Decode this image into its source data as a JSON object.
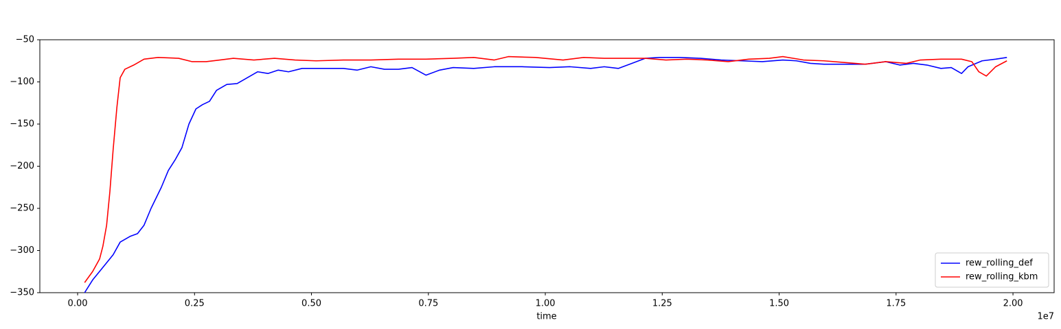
{
  "chart_data": {
    "type": "line",
    "x_label": "time",
    "x_offset_label": "1e7",
    "xlim": [
      -0.0808,
      2.088
    ],
    "ylim": [
      -350,
      -50
    ],
    "xticks": [
      {
        "value": 0,
        "label": "0.00"
      },
      {
        "value": 0.25,
        "label": "0.25"
      },
      {
        "value": 0.5,
        "label": "0.50"
      },
      {
        "value": 0.75,
        "label": "0.75"
      },
      {
        "value": 1,
        "label": "1.00"
      },
      {
        "value": 1.25,
        "label": "1.25"
      },
      {
        "value": 1.5,
        "label": "1.50"
      },
      {
        "value": 1.75,
        "label": "1.75"
      },
      {
        "value": 2,
        "label": "2.00"
      }
    ],
    "yticks": [
      {
        "value": -350,
        "label": "−350"
      },
      {
        "value": -300,
        "label": "−300"
      },
      {
        "value": -250,
        "label": "−250"
      },
      {
        "value": -200,
        "label": "−200"
      },
      {
        "value": -150,
        "label": "−150"
      },
      {
        "value": -100,
        "label": "−100"
      },
      {
        "value": -50,
        "label": "−50"
      }
    ],
    "grid": false,
    "legend_position": "lower right",
    "series": [
      {
        "name": "rew_rolling_def",
        "color": "#0000ff",
        "x": [
          0.015,
          0.032,
          0.054,
          0.076,
          0.091,
          0.113,
          0.128,
          0.142,
          0.157,
          0.179,
          0.194,
          0.209,
          0.223,
          0.238,
          0.253,
          0.267,
          0.282,
          0.297,
          0.319,
          0.341,
          0.363,
          0.385,
          0.407,
          0.429,
          0.451,
          0.48,
          0.524,
          0.568,
          0.598,
          0.627,
          0.656,
          0.686,
          0.715,
          0.745,
          0.774,
          0.803,
          0.847,
          0.891,
          0.95,
          1.009,
          1.053,
          1.097,
          1.126,
          1.156,
          1.185,
          1.214,
          1.244,
          1.288,
          1.332,
          1.376,
          1.42,
          1.464,
          1.508,
          1.537,
          1.567,
          1.596,
          1.64,
          1.684,
          1.728,
          1.758,
          1.787,
          1.816,
          1.846,
          1.868,
          1.89,
          1.904,
          1.934,
          1.963,
          1.987
        ],
        "values": [
          -350,
          -335,
          -320,
          -305,
          -290,
          -283,
          -280,
          -270,
          -250,
          -225,
          -205,
          -192,
          -178,
          -150,
          -132,
          -127,
          -123,
          -110,
          -103,
          -102,
          -95,
          -88,
          -90,
          -86,
          -88,
          -84,
          -84,
          -84,
          -86,
          -82,
          -85,
          -85,
          -83,
          -92,
          -86,
          -83,
          -84,
          -82,
          -82,
          -83,
          -82,
          -84,
          -82,
          -84,
          -78,
          -72,
          -71,
          -71,
          -72,
          -74,
          -75,
          -76,
          -74,
          -75,
          -78,
          -79,
          -79,
          -79,
          -76,
          -80,
          -78,
          -80,
          -84,
          -83,
          -90,
          -82,
          -75,
          -73,
          -71
        ]
      },
      {
        "name": "rew_rolling_kbm",
        "color": "#ff0000",
        "x": [
          0.015,
          0.032,
          0.047,
          0.054,
          0.062,
          0.069,
          0.076,
          0.084,
          0.091,
          0.101,
          0.12,
          0.142,
          0.172,
          0.216,
          0.245,
          0.275,
          0.304,
          0.333,
          0.377,
          0.421,
          0.465,
          0.51,
          0.568,
          0.627,
          0.686,
          0.745,
          0.803,
          0.847,
          0.891,
          0.921,
          0.979,
          1.038,
          1.082,
          1.126,
          1.17,
          1.214,
          1.258,
          1.302,
          1.347,
          1.391,
          1.435,
          1.479,
          1.508,
          1.552,
          1.596,
          1.64,
          1.684,
          1.728,
          1.772,
          1.802,
          1.846,
          1.89,
          1.912,
          1.927,
          1.943,
          1.963,
          1.987
        ],
        "values": [
          -338,
          -325,
          -310,
          -295,
          -270,
          -230,
          -180,
          -130,
          -95,
          -85,
          -80,
          -73,
          -71,
          -72,
          -76,
          -76,
          -74,
          -72,
          -74,
          -72,
          -74,
          -75,
          -74,
          -74,
          -73,
          -73,
          -72,
          -71,
          -74,
          -70,
          -71,
          -74,
          -71,
          -72,
          -72,
          -72,
          -74,
          -73,
          -74,
          -76,
          -73,
          -72,
          -70,
          -74,
          -75,
          -77,
          -79,
          -76,
          -78,
          -74,
          -73,
          -73,
          -76,
          -88,
          -93,
          -82,
          -75
        ]
      }
    ]
  }
}
